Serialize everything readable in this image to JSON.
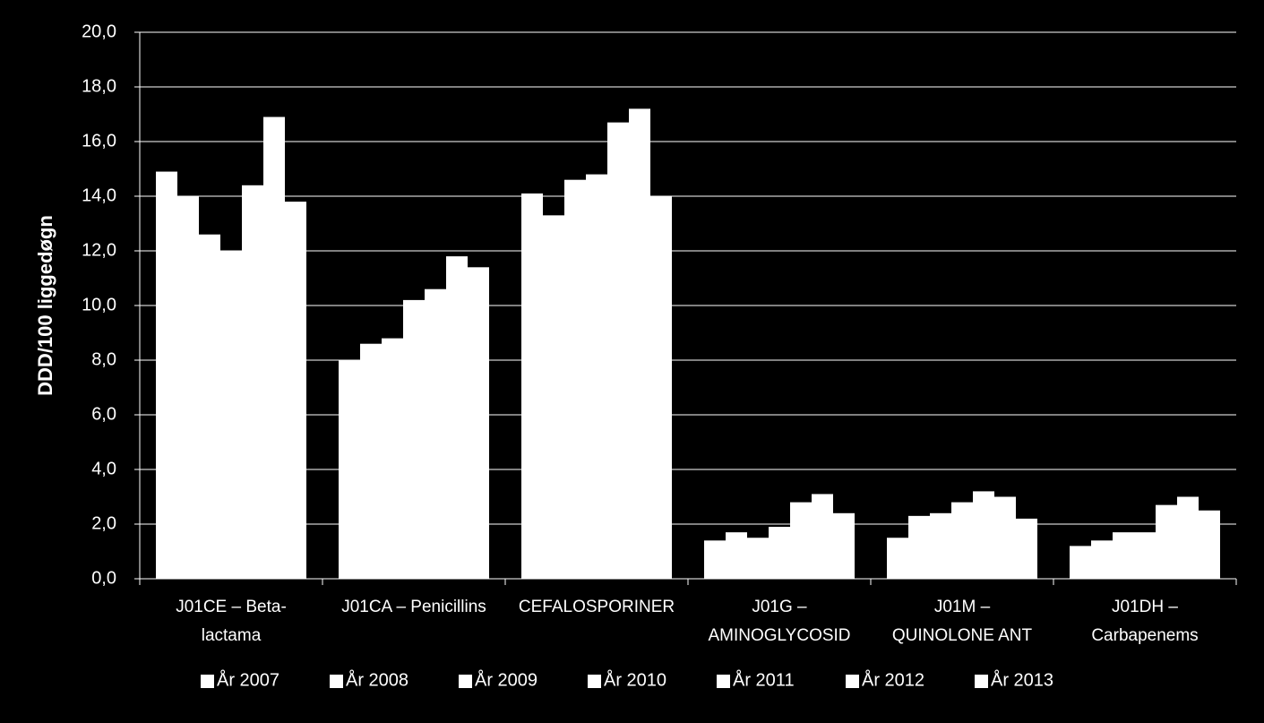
{
  "chart_data": {
    "type": "bar",
    "y_label": "DDD/100 liggedøgn",
    "categories": [
      "J01CE – Beta-\nlactama",
      "J01CA – Penicillins",
      "CEFALOSPORINER",
      "J01G –\nAMINOGLYCOSID",
      "J01M –\nQUINOLONE ANT",
      "J01DH –\nCarbapenems"
    ],
    "series": [
      {
        "name": "År 2007",
        "color": "#ffffff",
        "values": [
          14.9,
          8.0,
          14.1,
          1.4,
          1.5,
          1.2
        ]
      },
      {
        "name": "År 2008",
        "color": "#ffffff",
        "values": [
          14.0,
          8.6,
          13.3,
          1.7,
          2.3,
          1.4
        ]
      },
      {
        "name": "År 2009",
        "color": "#ffffff",
        "values": [
          12.6,
          8.8,
          14.6,
          1.5,
          2.4,
          1.7
        ]
      },
      {
        "name": "År 2010",
        "color": "#ffffff",
        "values": [
          12.0,
          10.2,
          14.8,
          1.9,
          2.8,
          1.7
        ]
      },
      {
        "name": "År 2011",
        "color": "#ffffff",
        "values": [
          14.4,
          10.6,
          16.7,
          2.8,
          3.2,
          2.7
        ]
      },
      {
        "name": "År 2012",
        "color": "#ffffff",
        "values": [
          16.9,
          11.8,
          17.2,
          3.1,
          3.0,
          3.0
        ]
      },
      {
        "name": "År 2013",
        "color": "#ffffff",
        "values": [
          13.8,
          11.4,
          14.0,
          2.4,
          2.2,
          2.5
        ]
      }
    ],
    "ylim": [
      0,
      20
    ],
    "yticks": [
      {
        "value": 0,
        "label": "0,0"
      },
      {
        "value": 2,
        "label": "2,0"
      },
      {
        "value": 4,
        "label": "4,0"
      },
      {
        "value": 6,
        "label": "6,0"
      },
      {
        "value": 8,
        "label": "8,0"
      },
      {
        "value": 10,
        "label": "10,0"
      },
      {
        "value": 12,
        "label": "12,0"
      },
      {
        "value": 14,
        "label": "14,0"
      },
      {
        "value": 16,
        "label": "16,0"
      },
      {
        "value": 18,
        "label": "18,0"
      },
      {
        "value": 20,
        "label": "20,0"
      }
    ],
    "grid": true,
    "legend": "bottom"
  }
}
